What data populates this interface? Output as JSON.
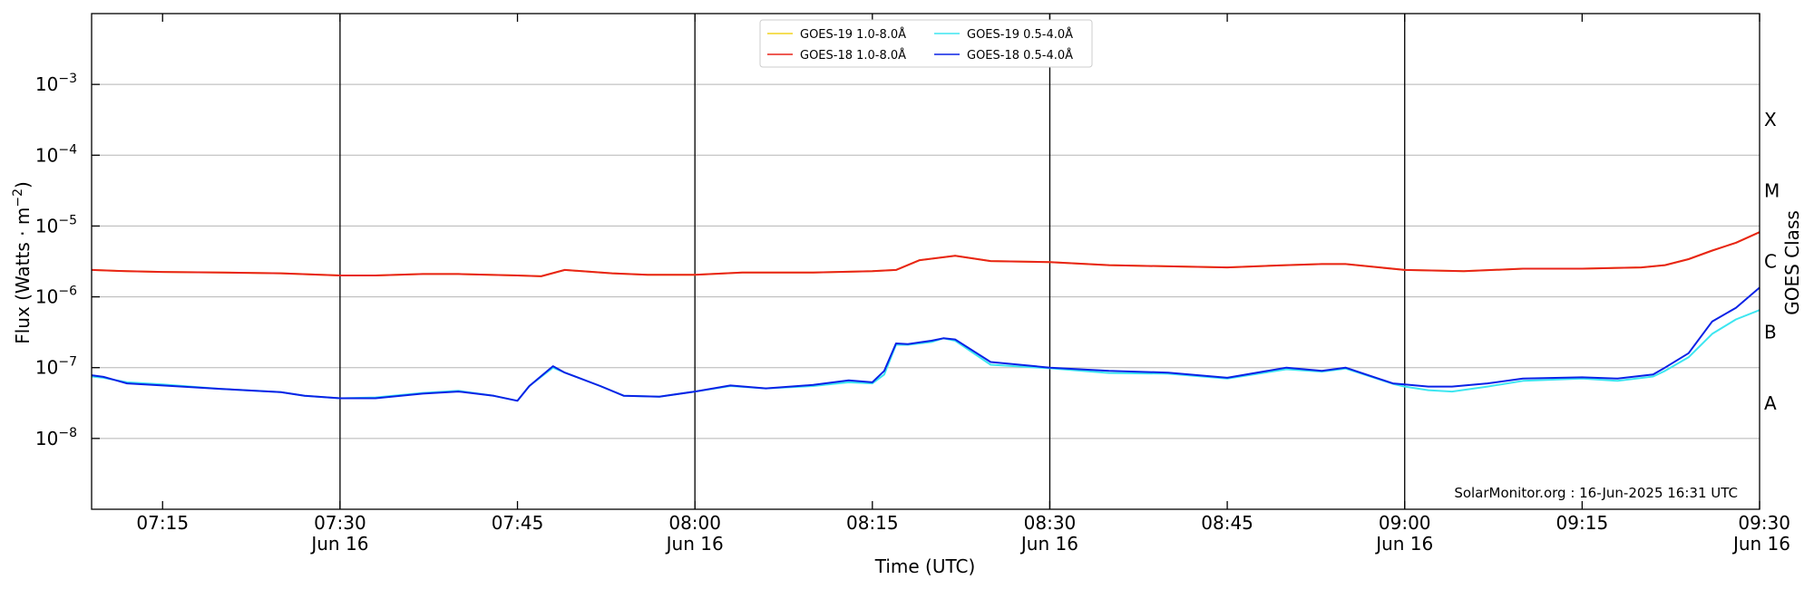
{
  "chart_data": {
    "type": "line",
    "xlabel": "Time (UTC)",
    "ylabel_main": "Flux (Watts · m",
    "ylabel_sup": "−2",
    "ylabel_close": ")",
    "right_label": "GOES Class",
    "yscale": "log",
    "xlim": [
      "07:09",
      "09:30"
    ],
    "ylim": [
      1e-09,
      0.01
    ],
    "grid": "horizontal",
    "legend_position": "top-center",
    "credit": "SolarMonitor.org : 16-Jun-2025 16:31 UTC",
    "x_ticks": [
      {
        "t": "07:15",
        "label": "07:15",
        "date": ""
      },
      {
        "t": "07:30",
        "label": "07:30",
        "date": "Jun 16"
      },
      {
        "t": "07:45",
        "label": "07:45",
        "date": ""
      },
      {
        "t": "08:00",
        "label": "08:00",
        "date": "Jun 16"
      },
      {
        "t": "08:15",
        "label": "08:15",
        "date": ""
      },
      {
        "t": "08:30",
        "label": "08:30",
        "date": "Jun 16"
      },
      {
        "t": "08:45",
        "label": "08:45",
        "date": ""
      },
      {
        "t": "09:00",
        "label": "09:00",
        "date": "Jun 16"
      },
      {
        "t": "09:15",
        "label": "09:15",
        "date": ""
      },
      {
        "t": "09:30",
        "label": "09:30",
        "date": "Jun 16"
      }
    ],
    "day_lines": [
      "07:30",
      "08:00",
      "08:30",
      "09:00"
    ],
    "y_ticks": [
      {
        "value": 1e-08,
        "exp": "−8"
      },
      {
        "value": 1e-07,
        "exp": "−7"
      },
      {
        "value": 1e-06,
        "exp": "−6"
      },
      {
        "value": 1e-05,
        "exp": "−5"
      },
      {
        "value": 0.0001,
        "exp": "−4"
      },
      {
        "value": 0.001,
        "exp": "−3"
      }
    ],
    "goes_classes": [
      {
        "label": "A",
        "value": 3.16e-08
      },
      {
        "label": "B",
        "value": 3.16e-07
      },
      {
        "label": "C",
        "value": 3.16e-06
      },
      {
        "label": "M",
        "value": 3.16e-05
      },
      {
        "label": "X",
        "value": 0.000316
      }
    ],
    "series": [
      {
        "name": "GOES-19 1.0-8.0Å",
        "color": "#f2d31f",
        "x": [
          "07:09",
          "07:12",
          "07:15",
          "07:20",
          "07:25",
          "07:30",
          "07:33",
          "07:37",
          "07:40",
          "07:45",
          "07:47",
          "07:49",
          "07:53",
          "07:56",
          "08:00",
          "08:04",
          "08:10",
          "08:15",
          "08:17",
          "08:19",
          "08:22",
          "08:25",
          "08:30",
          "08:35",
          "08:40",
          "08:45",
          "08:50",
          "08:53",
          "08:55",
          "09:00",
          "09:05",
          "09:10",
          "09:15",
          "09:20",
          "09:22",
          "09:24",
          "09:26",
          "09:28",
          "09:30"
        ],
        "values": [
          2.4e-06,
          2.3e-06,
          2.25e-06,
          2.2e-06,
          2.15e-06,
          2e-06,
          2e-06,
          2.1e-06,
          2.1e-06,
          2e-06,
          1.95e-06,
          2.4e-06,
          2.15e-06,
          2.05e-06,
          2.05e-06,
          2.2e-06,
          2.2e-06,
          2.3e-06,
          2.4e-06,
          3.3e-06,
          3.8e-06,
          3.2e-06,
          3.1e-06,
          2.8e-06,
          2.7e-06,
          2.6e-06,
          2.8e-06,
          2.9e-06,
          2.9e-06,
          2.4e-06,
          2.3e-06,
          2.5e-06,
          2.5e-06,
          2.6e-06,
          2.8e-06,
          3.4e-06,
          4.5e-06,
          5.8e-06,
          8.2e-06
        ]
      },
      {
        "name": "GOES-18 1.0-8.0Å",
        "color": "#e8231a",
        "x": [
          "07:09",
          "07:12",
          "07:15",
          "07:20",
          "07:25",
          "07:30",
          "07:33",
          "07:37",
          "07:40",
          "07:45",
          "07:47",
          "07:49",
          "07:53",
          "07:56",
          "08:00",
          "08:04",
          "08:10",
          "08:15",
          "08:17",
          "08:19",
          "08:22",
          "08:25",
          "08:30",
          "08:35",
          "08:40",
          "08:45",
          "08:50",
          "08:53",
          "08:55",
          "09:00",
          "09:05",
          "09:10",
          "09:15",
          "09:20",
          "09:22",
          "09:24",
          "09:26",
          "09:28",
          "09:30"
        ],
        "values": [
          2.4e-06,
          2.3e-06,
          2.25e-06,
          2.2e-06,
          2.15e-06,
          2e-06,
          2e-06,
          2.1e-06,
          2.1e-06,
          2e-06,
          1.95e-06,
          2.4e-06,
          2.15e-06,
          2.05e-06,
          2.05e-06,
          2.2e-06,
          2.2e-06,
          2.3e-06,
          2.4e-06,
          3.3e-06,
          3.8e-06,
          3.2e-06,
          3.1e-06,
          2.8e-06,
          2.7e-06,
          2.6e-06,
          2.8e-06,
          2.9e-06,
          2.9e-06,
          2.4e-06,
          2.3e-06,
          2.5e-06,
          2.5e-06,
          2.6e-06,
          2.8e-06,
          3.4e-06,
          4.5e-06,
          5.8e-06,
          8.2e-06
        ]
      },
      {
        "name": "GOES-19 0.5-4.0Å",
        "color": "#3de6f0",
        "x": [
          "07:09",
          "07:10",
          "07:12",
          "07:15",
          "07:20",
          "07:25",
          "07:27",
          "07:30",
          "07:33",
          "07:37",
          "07:40",
          "07:43",
          "07:45",
          "07:46",
          "07:48",
          "07:49",
          "07:52",
          "07:54",
          "07:57",
          "08:00",
          "08:03",
          "08:06",
          "08:10",
          "08:13",
          "08:15",
          "08:16",
          "08:17",
          "08:18",
          "08:20",
          "08:21",
          "08:22",
          "08:25",
          "08:30",
          "08:35",
          "08:40",
          "08:45",
          "08:50",
          "08:53",
          "08:55",
          "08:59",
          "09:00",
          "09:02",
          "09:04",
          "09:07",
          "09:10",
          "09:15",
          "09:18",
          "09:21",
          "09:22",
          "09:24",
          "09:26",
          "09:28",
          "09:30"
        ],
        "values": [
          7.5e-08,
          7.2e-08,
          6.2e-08,
          5.8e-08,
          5e-08,
          4.5e-08,
          4e-08,
          3.7e-08,
          3.8e-08,
          4.4e-08,
          4.7e-08,
          4e-08,
          3.4e-08,
          5.5e-08,
          1e-07,
          8.5e-08,
          5.5e-08,
          4e-08,
          3.9e-08,
          4.6e-08,
          5.5e-08,
          5.1e-08,
          5.5e-08,
          6.2e-08,
          6e-08,
          8e-08,
          2.1e-07,
          2.1e-07,
          2.3e-07,
          2.6e-07,
          2.4e-07,
          1.1e-07,
          9.8e-08,
          8.4e-08,
          8.2e-08,
          7e-08,
          9.5e-08,
          8.8e-08,
          9.7e-08,
          5.9e-08,
          5.4e-08,
          4.8e-08,
          4.6e-08,
          5.4e-08,
          6.5e-08,
          7e-08,
          6.5e-08,
          7.5e-08,
          9e-08,
          1.4e-07,
          3e-07,
          4.8e-07,
          6.5e-07
        ]
      },
      {
        "name": "GOES-18 0.5-4.0Å",
        "color": "#0a22e6",
        "x": [
          "07:09",
          "07:10",
          "07:12",
          "07:15",
          "07:20",
          "07:25",
          "07:27",
          "07:30",
          "07:33",
          "07:37",
          "07:40",
          "07:43",
          "07:45",
          "07:46",
          "07:48",
          "07:49",
          "07:52",
          "07:54",
          "07:57",
          "08:00",
          "08:03",
          "08:06",
          "08:10",
          "08:13",
          "08:15",
          "08:16",
          "08:17",
          "08:18",
          "08:20",
          "08:21",
          "08:22",
          "08:25",
          "08:30",
          "08:35",
          "08:40",
          "08:45",
          "08:50",
          "08:53",
          "08:55",
          "08:59",
          "09:00",
          "09:02",
          "09:04",
          "09:07",
          "09:10",
          "09:15",
          "09:18",
          "09:21",
          "09:22",
          "09:24",
          "09:26",
          "09:28",
          "09:30"
        ],
        "values": [
          7.8e-08,
          7.4e-08,
          6e-08,
          5.6e-08,
          5e-08,
          4.5e-08,
          4e-08,
          3.7e-08,
          3.7e-08,
          4.3e-08,
          4.6e-08,
          4e-08,
          3.4e-08,
          5.5e-08,
          1.05e-07,
          8.5e-08,
          5.5e-08,
          4e-08,
          3.9e-08,
          4.6e-08,
          5.6e-08,
          5.1e-08,
          5.7e-08,
          6.6e-08,
          6.2e-08,
          9e-08,
          2.2e-07,
          2.15e-07,
          2.4e-07,
          2.6e-07,
          2.5e-07,
          1.2e-07,
          1e-07,
          9e-08,
          8.5e-08,
          7.2e-08,
          1e-07,
          9e-08,
          1e-07,
          6e-08,
          5.8e-08,
          5.4e-08,
          5.4e-08,
          6e-08,
          7e-08,
          7.3e-08,
          7e-08,
          8e-08,
          1e-07,
          1.6e-07,
          4.5e-07,
          7e-07,
          1.35e-06
        ]
      }
    ]
  }
}
